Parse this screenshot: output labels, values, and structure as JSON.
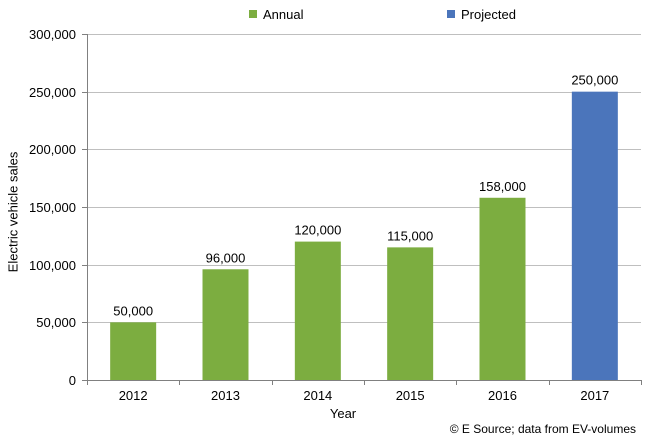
{
  "colors": {
    "annual": "#7cad40",
    "projected": "#4b75bb",
    "grid": "#bfbfbf",
    "axis": "#808080"
  },
  "legend": [
    {
      "label": "Annual",
      "color": "#7cad40"
    },
    {
      "label": "Projected",
      "color": "#4b75bb"
    }
  ],
  "chart_data": {
    "type": "bar",
    "categories": [
      "2012",
      "2013",
      "2014",
      "2015",
      "2016",
      "2017"
    ],
    "values": [
      50000,
      96000,
      120000,
      115000,
      158000,
      250000
    ],
    "data_labels": [
      "50,000",
      "96,000",
      "120,000",
      "115,000",
      "158,000",
      "250,000"
    ],
    "series_of_bar": [
      "Annual",
      "Annual",
      "Annual",
      "Annual",
      "Annual",
      "Projected"
    ],
    "series": [
      {
        "name": "Annual",
        "values": [
          50000,
          96000,
          120000,
          115000,
          158000,
          null
        ]
      },
      {
        "name": "Projected",
        "values": [
          null,
          null,
          null,
          null,
          null,
          250000
        ]
      }
    ],
    "ylim": [
      0,
      300000
    ],
    "yticks": [
      0,
      50000,
      100000,
      150000,
      200000,
      250000,
      300000
    ],
    "ytick_labels": [
      "0",
      "50,000",
      "100,000",
      "150,000",
      "200,000",
      "250,000",
      "300,000"
    ],
    "xlabel": "Year",
    "ylabel": "Electric vehicle sales",
    "grid": true,
    "legend_position": "top"
  },
  "credit": "© E Source; data from EV-volumes"
}
